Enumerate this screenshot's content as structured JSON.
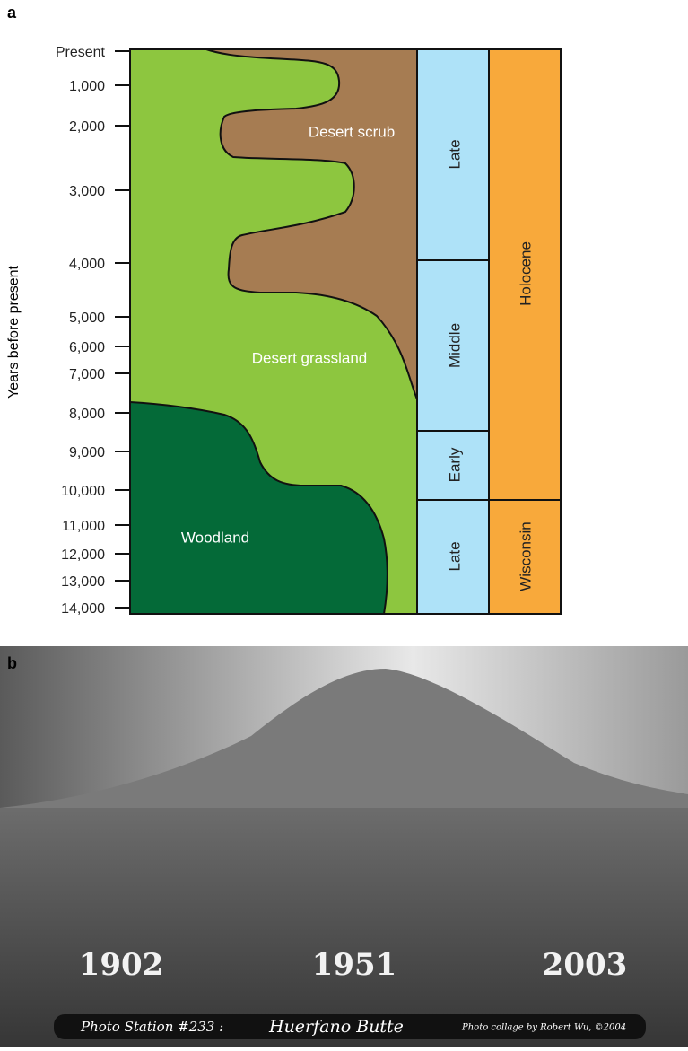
{
  "panel_a": {
    "label": "a",
    "y_axis_label": "Years before present",
    "ticks": [
      "Present",
      "1,000",
      "2,000",
      "3,000",
      "4,000",
      "5,000",
      "6,000",
      "7,000",
      "8,000",
      "9,000",
      "10,000",
      "11,000",
      "12,000",
      "13,000",
      "14,000"
    ],
    "zones": [
      "Desert scrub",
      "Desert grassland",
      "Woodland"
    ],
    "stages": [
      "Late",
      "Middle",
      "Early",
      "Late"
    ],
    "epochs": [
      "Holocene",
      "Wisconsin"
    ]
  },
  "panel_b": {
    "label": "b",
    "years": [
      "1902",
      "1951",
      "2003"
    ],
    "caption": {
      "station": "Photo Station #233 :",
      "place": "Huerfano Butte",
      "credit": "Photo collage by Robert Wu, ©2004"
    }
  }
}
